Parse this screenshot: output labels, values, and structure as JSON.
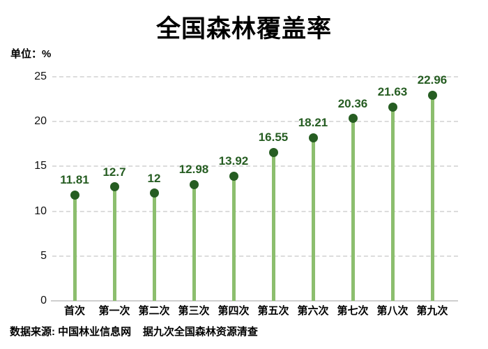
{
  "page": {
    "title": "全国森林覆盖率",
    "unit_label": "单位：%",
    "source_note": "数据来源: 中国林业信息网    据九次全国森林资源清查"
  },
  "chart_data": {
    "type": "bar",
    "subtype": "lollipop",
    "title": "全国森林覆盖率",
    "unit": "%",
    "categories": [
      "首次",
      "第一次",
      "第二次",
      "第三次",
      "第四次",
      "第五次",
      "第六次",
      "第七次",
      "第八次",
      "第九次"
    ],
    "values": [
      11.81,
      12.7,
      12,
      12.98,
      13.92,
      16.55,
      18.21,
      20.36,
      21.63,
      22.96
    ],
    "value_labels": [
      "11.81",
      "12.7",
      "12",
      "12.98",
      "13.92",
      "16.55",
      "18.21",
      "20.36",
      "21.63",
      "22.96"
    ],
    "xlabel": "",
    "ylabel": "单位：%",
    "ylim": [
      0,
      25
    ],
    "y_ticks": [
      0,
      5,
      10,
      15,
      20,
      25
    ],
    "grid": "horizontal-dashed",
    "legend": "none",
    "colors": {
      "stem": "#8cbe6e",
      "dot": "#265d22",
      "value_label": "#265d22",
      "gridline": "#dcdcdc",
      "axis_line": "#cfcfcf",
      "text": "#000000"
    }
  }
}
